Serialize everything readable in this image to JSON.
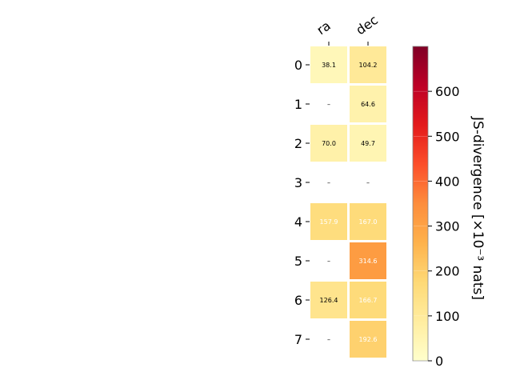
{
  "chart_data": {
    "type": "heatmap",
    "columns": [
      "ra",
      "dec"
    ],
    "rows": [
      "0",
      "1",
      "2",
      "3",
      "4",
      "5",
      "6",
      "7"
    ],
    "values": [
      [
        38.1,
        104.2
      ],
      [
        null,
        64.6
      ],
      [
        70.0,
        49.7
      ],
      [
        null,
        null
      ],
      [
        157.9,
        167.0
      ],
      [
        null,
        314.6
      ],
      [
        126.4,
        166.7
      ],
      [
        null,
        192.6
      ]
    ],
    "cell_labels": [
      [
        "38.1",
        "104.2"
      ],
      [
        "–",
        "64.6"
      ],
      [
        "70.0",
        "49.7"
      ],
      [
        "–",
        "–"
      ],
      [
        "157.9",
        "167.0"
      ],
      [
        "–",
        "314.6"
      ],
      [
        "126.4",
        "166.7"
      ],
      [
        "–",
        "192.6"
      ]
    ],
    "colorbar": {
      "label": "JS-divergence [×10⁻³ nats]",
      "range": [
        0,
        700
      ],
      "ticks": [
        0,
        100,
        200,
        300,
        400,
        500,
        600
      ],
      "colormap": "YlOrRd"
    },
    "grid": false
  }
}
